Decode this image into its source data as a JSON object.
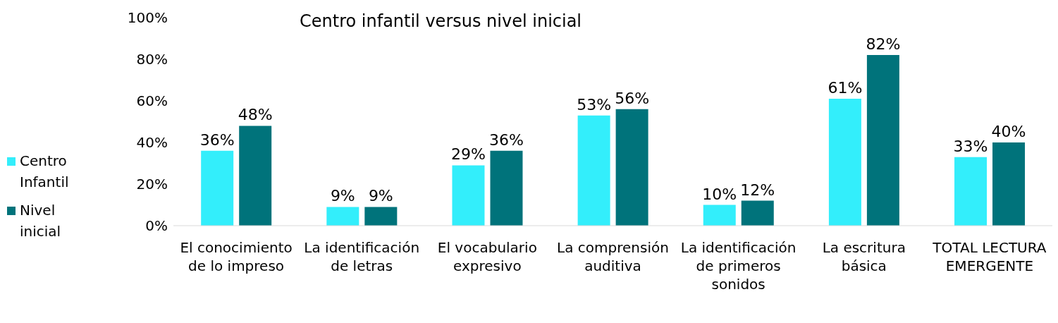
{
  "chart_data": {
    "type": "bar",
    "title": "Centro infantil versus nivel inicial",
    "categories": [
      "El conocimiento de lo impreso",
      "La identificación de letras",
      "El vocabulario expresivo",
      "La comprensión auditiva",
      "La identificación de primeros sonidos",
      "La escritura básica",
      "TOTAL LECTURA EMERGENTE"
    ],
    "series": [
      {
        "name": "Centro Infantil",
        "color": "#33eefb",
        "values": [
          36,
          9,
          29,
          53,
          10,
          61,
          33
        ],
        "value_labels": [
          "36%",
          "9%",
          "29%",
          "53%",
          "10%",
          "61%",
          "33%"
        ]
      },
      {
        "name": "Nivel inicial",
        "color": "#00737b",
        "values": [
          48,
          9,
          36,
          56,
          12,
          82,
          40
        ],
        "value_labels": [
          "48%",
          "9%",
          "36%",
          "56%",
          "12%",
          "82%",
          "40%"
        ]
      }
    ],
    "ylim": [
      0,
      100
    ],
    "yticks": [
      {
        "value": 0,
        "label": "0%"
      },
      {
        "value": 20,
        "label": "20%"
      },
      {
        "value": 40,
        "label": "40%"
      },
      {
        "value": 60,
        "label": "60%"
      },
      {
        "value": 80,
        "label": "80%"
      },
      {
        "value": 100,
        "label": "100%"
      }
    ],
    "grid": false,
    "legend": "left"
  }
}
